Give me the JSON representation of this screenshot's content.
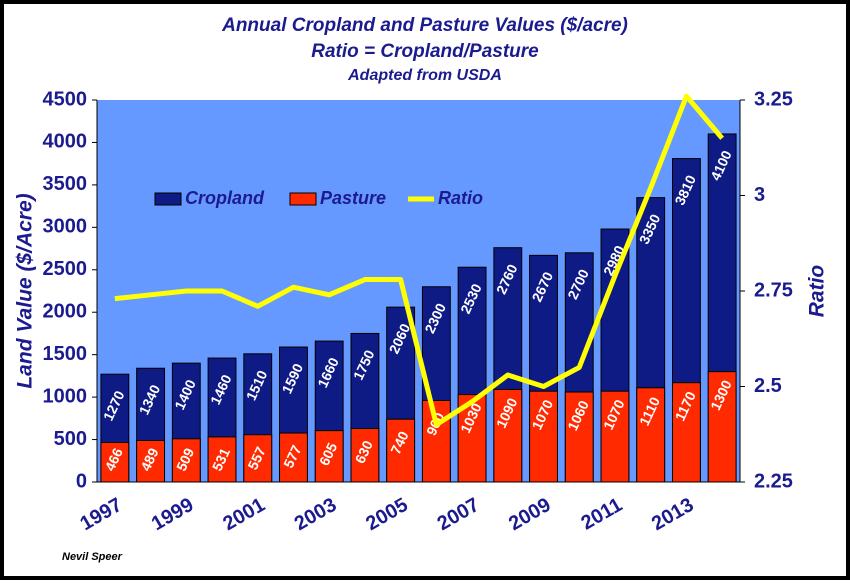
{
  "chart_data": {
    "type": "bar",
    "title": "Annual Cropland and Pasture Values ($/acre)",
    "subtitle": "Ratio = Cropland/Pasture",
    "note": "Adapted from USDA",
    "source": "Nevil Speer",
    "ylabel": "Land Value ($/Acre)",
    "y2label": "Ratio",
    "categories": [
      "1997",
      null,
      "1999",
      null,
      "2001",
      null,
      "2003",
      null,
      "2005",
      null,
      "2007",
      null,
      "2009",
      null,
      "2011",
      null,
      "2013",
      null
    ],
    "series": [
      {
        "name": "Cropland",
        "type": "bar",
        "color": "#0f1b85",
        "values": [
          1270,
          1340,
          1400,
          1460,
          1510,
          1590,
          1660,
          1750,
          2060,
          2300,
          2530,
          2760,
          2670,
          2700,
          2980,
          3350,
          3810,
          4100
        ]
      },
      {
        "name": "Pasture",
        "type": "bar",
        "color": "#ff2a00",
        "values": [
          466,
          489,
          509,
          531,
          557,
          577,
          605,
          630,
          740,
          960,
          1030,
          1090,
          1070,
          1060,
          1070,
          1110,
          1170,
          1300
        ]
      },
      {
        "name": "Ratio",
        "type": "line",
        "axis": "y2",
        "color": "#ffff00",
        "values": [
          2.73,
          2.74,
          2.75,
          2.75,
          2.71,
          2.76,
          2.74,
          2.78,
          2.78,
          2.4,
          2.46,
          2.53,
          2.5,
          2.55,
          2.79,
          3.02,
          3.26,
          3.15
        ]
      }
    ],
    "ylim": [
      0,
      4500
    ],
    "yticks": [
      0,
      500,
      1000,
      1500,
      2000,
      2500,
      3000,
      3500,
      4000,
      4500
    ],
    "y2lim": [
      2.25,
      3.25
    ],
    "y2ticks": [
      2.25,
      2.5,
      2.75,
      3,
      3.25
    ]
  }
}
